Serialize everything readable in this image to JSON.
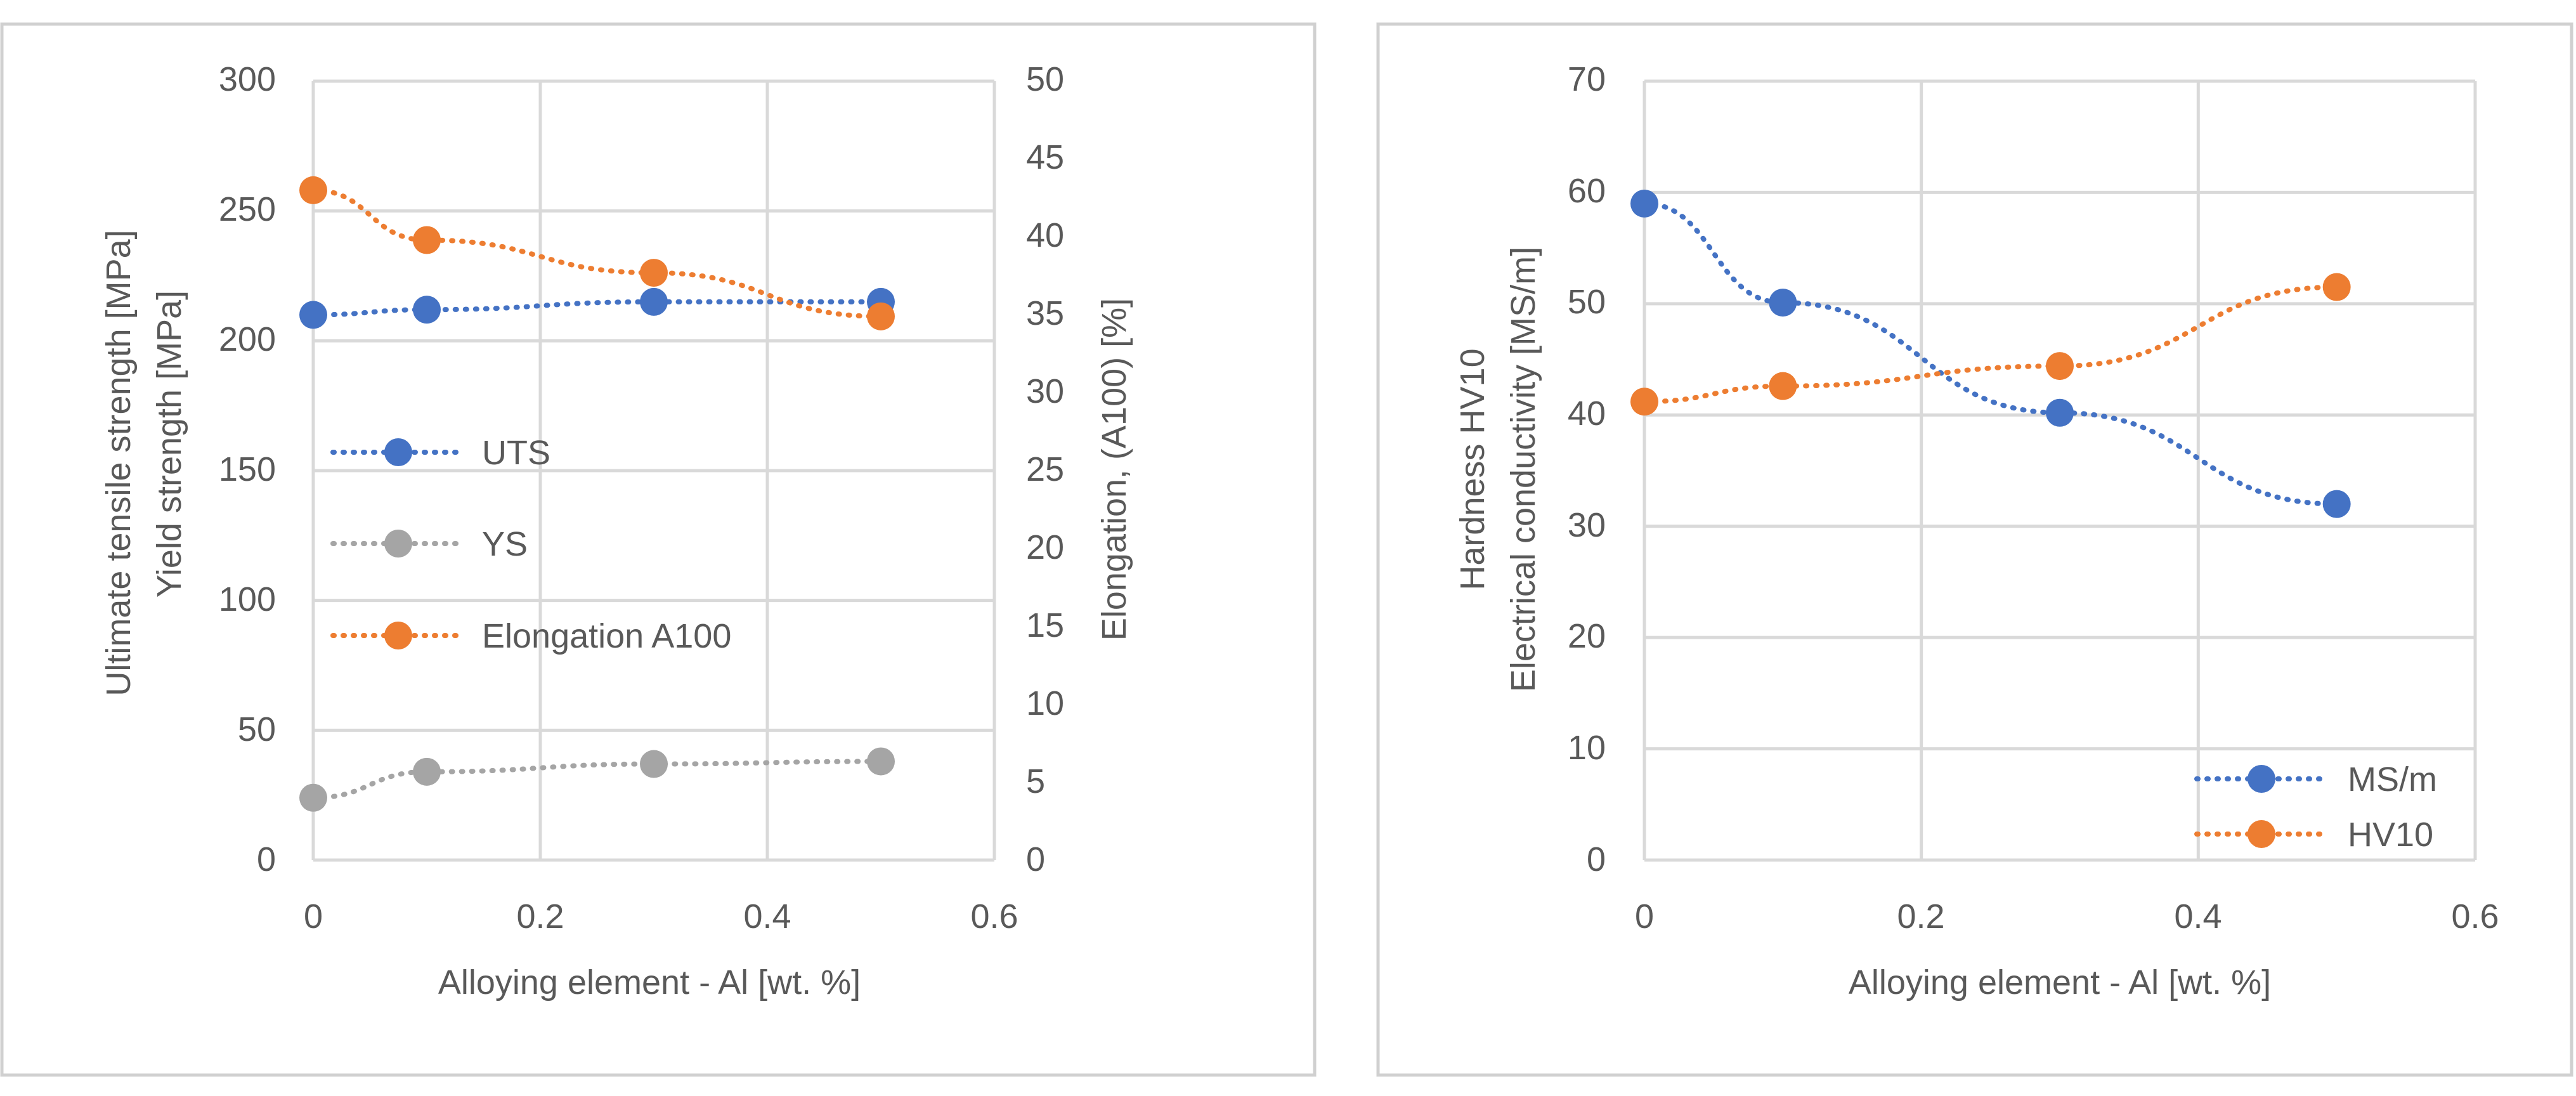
{
  "chart_data": [
    {
      "type": "line",
      "xlabel": "Alloying element - Al [wt. %]",
      "ylabel_lines": [
        "Ultimate tensile strength [MPa]",
        "Yield strength [MPa]"
      ],
      "y2label": "Elongation, (A100) [%]",
      "xlim": [
        0,
        0.6
      ],
      "ylim": [
        0,
        300
      ],
      "y2lim": [
        0,
        50
      ],
      "grid": true,
      "legend_position": "middle-left",
      "x_ticks": [
        "0",
        "0.2",
        "0.4",
        "0.6"
      ],
      "y_ticks": [
        "0",
        "50",
        "100",
        "150",
        "200",
        "250",
        "300"
      ],
      "y2_ticks": [
        "0",
        "5",
        "10",
        "15",
        "20",
        "25",
        "30",
        "35",
        "40",
        "45",
        "50"
      ],
      "series": [
        {
          "name": "UTS",
          "axis": "left",
          "color": "#4472c4",
          "x": [
            0,
            0.1,
            0.3,
            0.5
          ],
          "values": [
            210,
            212,
            215,
            215
          ]
        },
        {
          "name": "YS",
          "axis": "left",
          "color": "#a5a5a5",
          "x": [
            0,
            0.1,
            0.3,
            0.5
          ],
          "values": [
            24,
            34,
            37,
            38
          ]
        },
        {
          "name": "Elongation A100",
          "axis": "right",
          "color": "#ed7d31",
          "x": [
            0,
            0.1,
            0.3,
            0.5
          ],
          "values": [
            43,
            39.8,
            37.7,
            34.9
          ]
        }
      ]
    },
    {
      "type": "line",
      "xlabel": "Alloying element - Al [wt. %]",
      "ylabel_lines": [
        "Hardness HV10",
        "Electrical conductivity [MS/m]"
      ],
      "xlim": [
        0,
        0.6
      ],
      "ylim": [
        0,
        70
      ],
      "grid": true,
      "legend_position": "bottom-right",
      "x_ticks": [
        "0",
        "0.2",
        "0.4",
        "0.6"
      ],
      "y_ticks": [
        "0",
        "10",
        "20",
        "30",
        "40",
        "50",
        "60",
        "70"
      ],
      "series": [
        {
          "name": "MS/m",
          "axis": "left",
          "color": "#4472c4",
          "x": [
            0,
            0.1,
            0.3,
            0.5
          ],
          "values": [
            59,
            50.1,
            40.2,
            32
          ]
        },
        {
          "name": "HV10",
          "axis": "left",
          "color": "#ed7d31",
          "x": [
            0,
            0.1,
            0.3,
            0.5
          ],
          "values": [
            41.2,
            42.6,
            44.4,
            51.5
          ]
        }
      ]
    }
  ]
}
